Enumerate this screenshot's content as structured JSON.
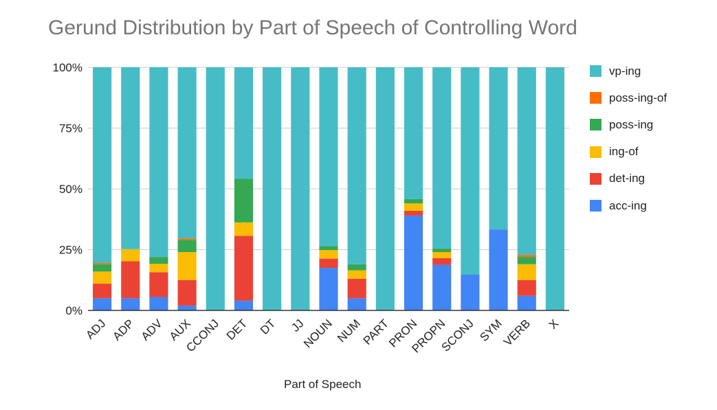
{
  "chart_data": {
    "type": "bar",
    "stacked": true,
    "normalized": true,
    "title": "Gerund Distribution by Part of Speech of Controlling Word",
    "xlabel": "Part of Speech",
    "ylabel": "",
    "ylim": [
      0,
      100
    ],
    "y_ticks": [
      "0%",
      "25%",
      "50%",
      "75%",
      "100%"
    ],
    "y_tick_values": [
      0,
      25,
      50,
      75,
      100
    ],
    "grid": true,
    "legend_position": "right",
    "categories": [
      "ADJ",
      "ADP",
      "ADV",
      "AUX",
      "CCONJ",
      "DET",
      "DT",
      "JJ",
      "NOUN",
      "NUM",
      "PART",
      "PRON",
      "PROPN",
      "SCONJ",
      "SYM",
      "VERB",
      "X"
    ],
    "series": [
      {
        "name": "acc-ing",
        "color": "#4285f4",
        "values": [
          5,
          5,
          5.5,
          2,
          0,
          4,
          0,
          0,
          17.5,
          5,
          0,
          39,
          18.8,
          14.8,
          33.3,
          6,
          0
        ]
      },
      {
        "name": "det-ing",
        "color": "#ea4335",
        "values": [
          6,
          15.2,
          10.2,
          10.5,
          0,
          26.7,
          0,
          0,
          3.8,
          8,
          0,
          2,
          2.7,
          0,
          0,
          6.5,
          0
        ]
      },
      {
        "name": "ing-of",
        "color": "#fbbc04",
        "values": [
          5,
          5,
          3.5,
          11.5,
          0,
          5.5,
          0,
          0,
          3.5,
          3.5,
          0,
          3,
          2.5,
          0,
          0,
          6.5,
          0
        ]
      },
      {
        "name": "poss-ing",
        "color": "#34a853",
        "values": [
          3,
          0,
          2.8,
          5,
          0,
          18,
          0,
          0,
          1.7,
          2.5,
          0,
          1.8,
          1.5,
          0,
          0,
          3,
          0
        ]
      },
      {
        "name": "poss-ing-of",
        "color": "#ff6d01",
        "values": [
          0.5,
          0,
          0,
          0.6,
          0,
          0,
          0,
          0,
          0,
          0,
          0,
          0,
          0,
          0,
          0,
          0.8,
          0
        ]
      },
      {
        "name": "vp-ing",
        "color": "#46bdc6",
        "values": [
          80.5,
          74.8,
          78,
          70.4,
          100,
          45.8,
          100,
          100,
          73.5,
          81,
          100,
          54.2,
          74.5,
          85.2,
          66.7,
          77.2,
          100
        ]
      }
    ]
  }
}
